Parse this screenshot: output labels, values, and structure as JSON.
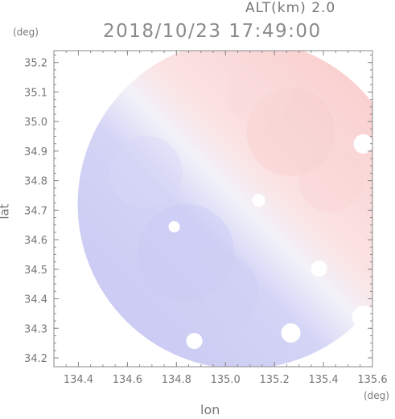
{
  "chart_data": {
    "type": "heatmap",
    "title": "2018/10/23 17:49:00",
    "altitude_label": "ALT(km) 2.0",
    "xlabel": "lon",
    "ylabel": "lat",
    "x_unit": "(deg)",
    "y_unit": "(deg)",
    "xlim": [
      134.3,
      135.6
    ],
    "ylim": [
      34.17,
      35.24
    ],
    "x_ticks": [
      "134.4",
      "134.6",
      "134.8",
      "135.0",
      "135.2",
      "135.4",
      "135.6"
    ],
    "y_ticks": [
      "35.2",
      "35.1",
      "35.0",
      "34.9",
      "34.8",
      "34.7",
      "34.6",
      "34.5",
      "34.4",
      "34.3",
      "34.2"
    ],
    "radar_center": {
      "lon": 135.07,
      "lat": 34.72
    },
    "color_positive": "#f9c9c9",
    "color_neutral": "#f4f4fa",
    "color_negative": "#cbcbf4",
    "grid": false
  }
}
